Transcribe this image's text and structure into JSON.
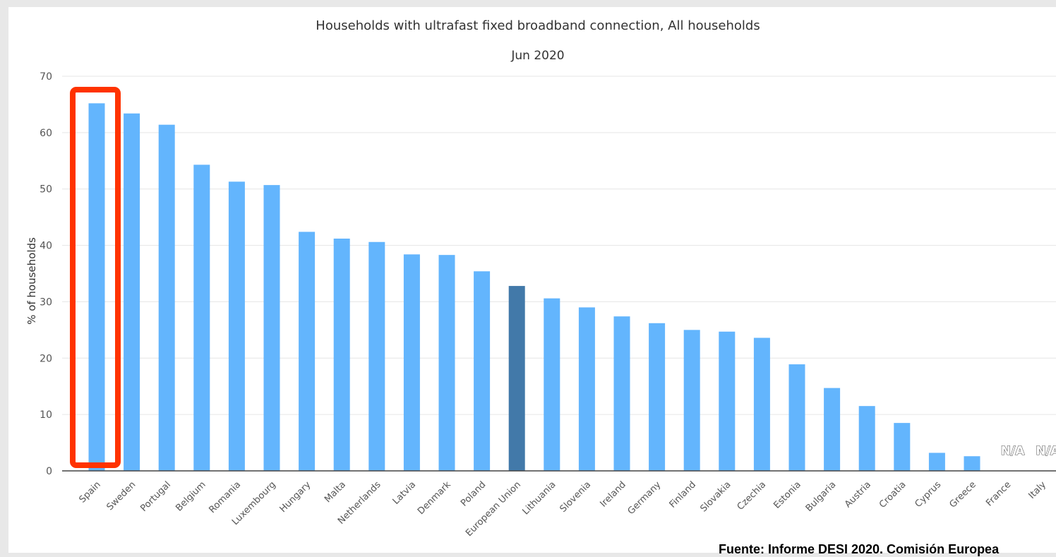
{
  "chart_data": {
    "type": "bar",
    "title": "Households with ultrafast fixed broadband connection, All households",
    "subtitle": "Jun 2020",
    "ylabel": "% of households",
    "xlabel": "",
    "ylim": [
      0,
      70
    ],
    "yticks": [
      0,
      10,
      20,
      30,
      40,
      50,
      60,
      70
    ],
    "grid": true,
    "categories": [
      "Spain",
      "Sweden",
      "Portugal",
      "Belgium",
      "Romania",
      "Luxembourg",
      "Hungary",
      "Malta",
      "Netherlands",
      "Latvia",
      "Denmark",
      "Poland",
      "European Union",
      "Lithuania",
      "Slovenia",
      "Ireland",
      "Germany",
      "Finland",
      "Slovakia",
      "Czechia",
      "Estonia",
      "Bulgaria",
      "Austria",
      "Croatia",
      "Cyprus",
      "Greece",
      "France",
      "Italy"
    ],
    "values": [
      65.2,
      63.4,
      61.4,
      54.3,
      51.3,
      50.7,
      42.4,
      41.2,
      40.6,
      38.4,
      38.3,
      35.4,
      32.8,
      30.6,
      29.0,
      27.4,
      26.2,
      25.0,
      24.7,
      23.6,
      18.9,
      14.7,
      11.5,
      8.5,
      3.2,
      2.6,
      null,
      null
    ],
    "missing_label": "N/A",
    "bar_color": "#63b5fd",
    "highlight_bar": "European Union",
    "highlight_color": "#4279a9",
    "annotation": {
      "target": "Spain",
      "shape": "rectangle",
      "color": "#ff3300"
    }
  },
  "source_text": "Fuente: Informe DESI 2020. Comisión Europea"
}
